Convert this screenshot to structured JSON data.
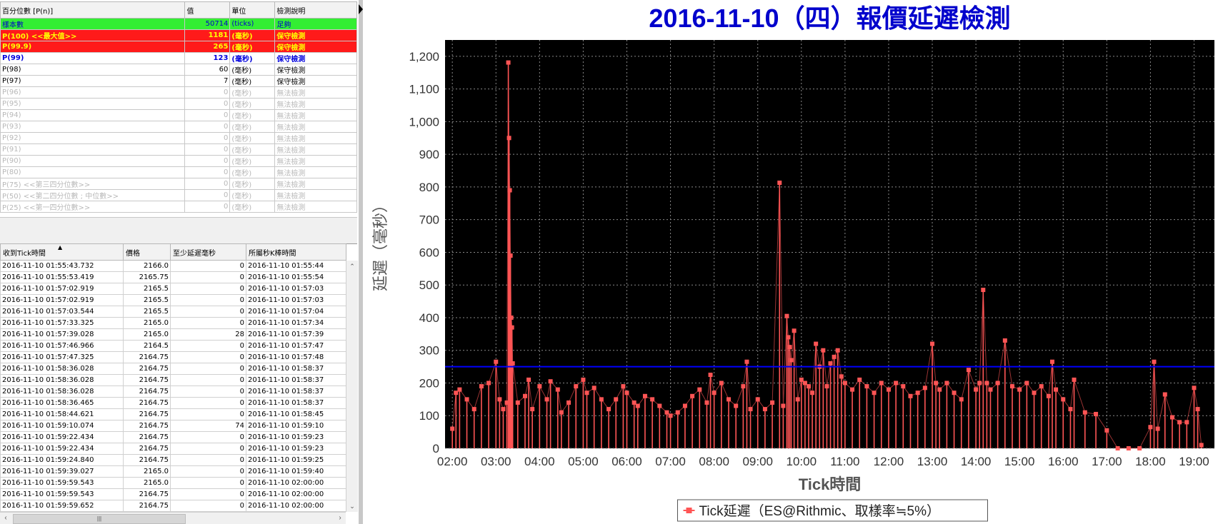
{
  "percentile_table": {
    "headers": [
      "百分位數 [P(n)]",
      "值",
      "單位",
      "檢測說明"
    ],
    "rows": [
      {
        "style": "green",
        "label": "樣本數",
        "value": "50714",
        "unit": "(ticks)",
        "desc": "足夠"
      },
      {
        "style": "red",
        "label": "P(100) <<最大值>>",
        "value": "1181",
        "unit": "(毫秒)",
        "desc": "保守檢測"
      },
      {
        "style": "red",
        "label": "P(99.9)",
        "value": "265",
        "unit": "(毫秒)",
        "desc": "保守檢測"
      },
      {
        "style": "blue",
        "label": "P(99)",
        "value": "123",
        "unit": "(毫秒)",
        "desc": "保守檢測"
      },
      {
        "style": "black",
        "label": "P(98)",
        "value": "60",
        "unit": "(毫秒)",
        "desc": "保守檢測"
      },
      {
        "style": "black",
        "label": "P(97)",
        "value": "7",
        "unit": "(毫秒)",
        "desc": "保守檢測"
      },
      {
        "style": "grey",
        "label": "P(96)",
        "value": "0",
        "unit": "(毫秒)",
        "desc": "無法檢測"
      },
      {
        "style": "grey",
        "label": "P(95)",
        "value": "0",
        "unit": "(毫秒)",
        "desc": "無法檢測"
      },
      {
        "style": "grey",
        "label": "P(94)",
        "value": "0",
        "unit": "(毫秒)",
        "desc": "無法檢測"
      },
      {
        "style": "grey",
        "label": "P(93)",
        "value": "0",
        "unit": "(毫秒)",
        "desc": "無法檢測"
      },
      {
        "style": "grey",
        "label": "P(92)",
        "value": "0",
        "unit": "(毫秒)",
        "desc": "無法檢測"
      },
      {
        "style": "grey",
        "label": "P(91)",
        "value": "0",
        "unit": "(毫秒)",
        "desc": "無法檢測"
      },
      {
        "style": "grey",
        "label": "P(90)",
        "value": "0",
        "unit": "(毫秒)",
        "desc": "無法檢測"
      },
      {
        "style": "grey",
        "label": "P(80)",
        "value": "0",
        "unit": "(毫秒)",
        "desc": "無法檢測"
      },
      {
        "style": "grey",
        "label": "P(75) <<第三四分位數>>",
        "value": "0",
        "unit": "(毫秒)",
        "desc": "無法檢測"
      },
      {
        "style": "grey",
        "label": "P(50) <<第二四分位數 ; 中位數>>",
        "value": "0",
        "unit": "(毫秒)",
        "desc": "無法檢測"
      },
      {
        "style": "grey",
        "label": "P(25) <<第一四分位數>>",
        "value": "0",
        "unit": "(毫秒)",
        "desc": "無法檢測"
      }
    ]
  },
  "tick_table": {
    "headers": [
      "收到Tick時間",
      "價格",
      "至少延遲毫秒",
      "所屬秒K棒時間"
    ],
    "rows": [
      [
        "2016-11-10 01:55:43.732",
        "2166.0",
        "0",
        "2016-11-10 01:55:44"
      ],
      [
        "2016-11-10 01:55:53.419",
        "2165.75",
        "0",
        "2016-11-10 01:55:54"
      ],
      [
        "2016-11-10 01:57:02.919",
        "2165.5",
        "0",
        "2016-11-10 01:57:03"
      ],
      [
        "2016-11-10 01:57:02.919",
        "2165.5",
        "0",
        "2016-11-10 01:57:03"
      ],
      [
        "2016-11-10 01:57:03.544",
        "2165.5",
        "0",
        "2016-11-10 01:57:04"
      ],
      [
        "2016-11-10 01:57:33.325",
        "2165.0",
        "0",
        "2016-11-10 01:57:34"
      ],
      [
        "2016-11-10 01:57:39.028",
        "2165.0",
        "28",
        "2016-11-10 01:57:39"
      ],
      [
        "2016-11-10 01:57:46.966",
        "2164.5",
        "0",
        "2016-11-10 01:57:47"
      ],
      [
        "2016-11-10 01:57:47.325",
        "2164.75",
        "0",
        "2016-11-10 01:57:48"
      ],
      [
        "2016-11-10 01:58:36.028",
        "2164.75",
        "0",
        "2016-11-10 01:58:37"
      ],
      [
        "2016-11-10 01:58:36.028",
        "2164.75",
        "0",
        "2016-11-10 01:58:37"
      ],
      [
        "2016-11-10 01:58:36.028",
        "2164.75",
        "0",
        "2016-11-10 01:58:37"
      ],
      [
        "2016-11-10 01:58:36.465",
        "2164.75",
        "0",
        "2016-11-10 01:58:37"
      ],
      [
        "2016-11-10 01:58:44.621",
        "2164.75",
        "0",
        "2016-11-10 01:58:45"
      ],
      [
        "2016-11-10 01:59:10.074",
        "2164.75",
        "74",
        "2016-11-10 01:59:10"
      ],
      [
        "2016-11-10 01:59:22.434",
        "2164.75",
        "0",
        "2016-11-10 01:59:23"
      ],
      [
        "2016-11-10 01:59:22.434",
        "2164.75",
        "0",
        "2016-11-10 01:59:23"
      ],
      [
        "2016-11-10 01:59:24.840",
        "2164.75",
        "0",
        "2016-11-10 01:59:25"
      ],
      [
        "2016-11-10 01:59:39.027",
        "2165.0",
        "0",
        "2016-11-10 01:59:40"
      ],
      [
        "2016-11-10 01:59:59.543",
        "2165.0",
        "0",
        "2016-11-10 02:00:00"
      ],
      [
        "2016-11-10 01:59:59.543",
        "2164.75",
        "0",
        "2016-11-10 02:00:00"
      ],
      [
        "2016-11-10 01:59:59.652",
        "2164.75",
        "0",
        "2016-11-10 02:00:00"
      ]
    ]
  },
  "scroll": {
    "up_icon": "⌃",
    "down_icon": "⌄",
    "left_icon": "‹",
    "right_icon": "›",
    "thumb_grip": "|||"
  },
  "colors": {
    "title": "#0000cc",
    "plot_bg": "#000000",
    "series": "#ff5555",
    "threshold": "#0000ff",
    "red_row": "#ff1a1a",
    "green_row": "#33ee33"
  },
  "chart_data": {
    "type": "line",
    "title": "2016-11-10（四）報價延遲檢測",
    "xlabel": "Tick時間",
    "ylabel": "延遲（毫秒）",
    "x_range": [
      "01:50",
      "19:28"
    ],
    "ylim": [
      0,
      1250
    ],
    "yticks": [
      "0",
      "100",
      "200",
      "300",
      "400",
      "500",
      "600",
      "700",
      "800",
      "900",
      "1,000",
      "1,100",
      "1,200"
    ],
    "xticks": [
      "02:00",
      "03:00",
      "04:00",
      "05:00",
      "06:00",
      "07:00",
      "08:00",
      "09:00",
      "10:00",
      "11:00",
      "12:00",
      "13:00",
      "14:00",
      "15:00",
      "16:00",
      "17:00",
      "18:00",
      "19:00"
    ],
    "grid": true,
    "legend_position": "bottom",
    "threshold": 250,
    "series": [
      {
        "name": "Tick延遲（ES@Rithmic、取樣率≒5%）",
        "points": [
          [
            "02:00",
            60
          ],
          [
            "02:05",
            170
          ],
          [
            "02:10",
            180
          ],
          [
            "02:20",
            150
          ],
          [
            "02:30",
            120
          ],
          [
            "02:40",
            190
          ],
          [
            "02:50",
            200
          ],
          [
            "03:00",
            265
          ],
          [
            "03:05",
            150
          ],
          [
            "03:10",
            120
          ],
          [
            "03:15",
            140
          ],
          [
            "03:17",
            1181
          ],
          [
            "03:18",
            950
          ],
          [
            "03:19",
            790
          ],
          [
            "03:20",
            590
          ],
          [
            "03:21",
            400
          ],
          [
            "03:22",
            370
          ],
          [
            "03:23",
            260
          ],
          [
            "03:30",
            140
          ],
          [
            "03:40",
            160
          ],
          [
            "03:45",
            210
          ],
          [
            "03:50",
            120
          ],
          [
            "04:00",
            190
          ],
          [
            "04:10",
            150
          ],
          [
            "04:15",
            205
          ],
          [
            "04:25",
            180
          ],
          [
            "04:30",
            110
          ],
          [
            "04:40",
            140
          ],
          [
            "04:50",
            190
          ],
          [
            "05:00",
            210
          ],
          [
            "05:05",
            170
          ],
          [
            "05:15",
            185
          ],
          [
            "05:25",
            150
          ],
          [
            "05:35",
            120
          ],
          [
            "05:45",
            150
          ],
          [
            "05:55",
            190
          ],
          [
            "06:00",
            170
          ],
          [
            "06:10",
            140
          ],
          [
            "06:15",
            130
          ],
          [
            "06:25",
            160
          ],
          [
            "06:35",
            150
          ],
          [
            "06:45",
            130
          ],
          [
            "06:55",
            110
          ],
          [
            "07:00",
            100
          ],
          [
            "07:10",
            110
          ],
          [
            "07:20",
            130
          ],
          [
            "07:30",
            160
          ],
          [
            "07:40",
            180
          ],
          [
            "07:50",
            140
          ],
          [
            "07:55",
            225
          ],
          [
            "08:00",
            170
          ],
          [
            "08:10",
            200
          ],
          [
            "08:20",
            150
          ],
          [
            "08:30",
            130
          ],
          [
            "08:40",
            190
          ],
          [
            "08:45",
            265
          ],
          [
            "08:50",
            120
          ],
          [
            "09:00",
            150
          ],
          [
            "09:10",
            120
          ],
          [
            "09:20",
            140
          ],
          [
            "09:30",
            813
          ],
          [
            "09:35",
            130
          ],
          [
            "09:40",
            405
          ],
          [
            "09:42",
            340
          ],
          [
            "09:44",
            310
          ],
          [
            "09:46",
            270
          ],
          [
            "09:50",
            360
          ],
          [
            "09:55",
            150
          ],
          [
            "10:00",
            210
          ],
          [
            "10:05",
            200
          ],
          [
            "10:10",
            190
          ],
          [
            "10:15",
            170
          ],
          [
            "10:20",
            320
          ],
          [
            "10:25",
            250
          ],
          [
            "10:30",
            300
          ],
          [
            "10:35",
            190
          ],
          [
            "10:40",
            260
          ],
          [
            "10:45",
            280
          ],
          [
            "10:50",
            300
          ],
          [
            "10:55",
            220
          ],
          [
            "11:00",
            200
          ],
          [
            "11:10",
            180
          ],
          [
            "11:20",
            210
          ],
          [
            "11:30",
            190
          ],
          [
            "11:40",
            170
          ],
          [
            "11:50",
            200
          ],
          [
            "12:00",
            180
          ],
          [
            "12:10",
            200
          ],
          [
            "12:20",
            190
          ],
          [
            "12:30",
            160
          ],
          [
            "12:40",
            170
          ],
          [
            "12:50",
            185
          ],
          [
            "13:00",
            320
          ],
          [
            "13:05",
            200
          ],
          [
            "13:10",
            180
          ],
          [
            "13:20",
            200
          ],
          [
            "13:30",
            170
          ],
          [
            "13:40",
            150
          ],
          [
            "13:50",
            240
          ],
          [
            "14:00",
            180
          ],
          [
            "14:05",
            200
          ],
          [
            "14:10",
            485
          ],
          [
            "14:15",
            200
          ],
          [
            "14:20",
            180
          ],
          [
            "14:30",
            200
          ],
          [
            "14:40",
            330
          ],
          [
            "14:50",
            190
          ],
          [
            "15:00",
            180
          ],
          [
            "15:10",
            200
          ],
          [
            "15:20",
            170
          ],
          [
            "15:30",
            190
          ],
          [
            "15:40",
            160
          ],
          [
            "15:45",
            265
          ],
          [
            "15:50",
            180
          ],
          [
            "16:00",
            150
          ],
          [
            "16:10",
            120
          ],
          [
            "16:15",
            210
          ],
          [
            "16:30",
            110
          ],
          [
            "16:45",
            105
          ],
          [
            "17:00",
            55
          ],
          [
            "17:15",
            0
          ],
          [
            "17:30",
            0
          ],
          [
            "17:45",
            0
          ],
          [
            "18:00",
            65
          ],
          [
            "18:05",
            265
          ],
          [
            "18:10",
            60
          ],
          [
            "18:20",
            165
          ],
          [
            "18:30",
            95
          ],
          [
            "18:40",
            80
          ],
          [
            "18:50",
            80
          ],
          [
            "19:00",
            185
          ],
          [
            "19:05",
            120
          ],
          [
            "19:10",
            10
          ]
        ]
      }
    ]
  }
}
